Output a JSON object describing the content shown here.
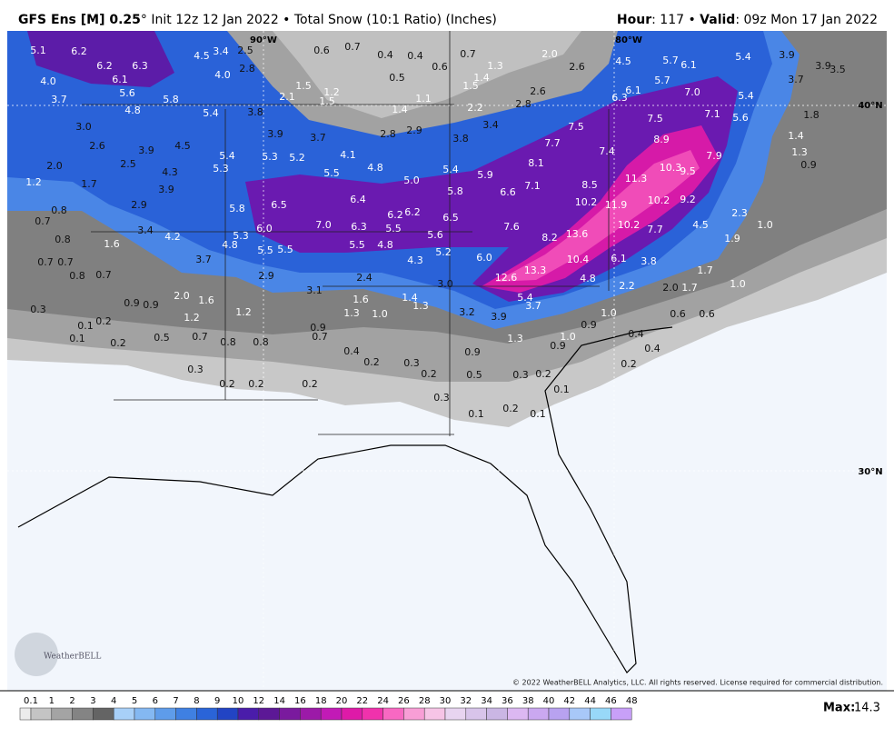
{
  "header": {
    "title_bold": "GFS Ens [M] 0.25",
    "title_rest": "° Init 12z 12 Jan 2022 • Total Snow (10:1 Ratio) (Inches)",
    "hour_key": "Hour",
    "hour_rest": ": 117 • ",
    "valid_key": "Valid",
    "valid_rest": ": 09z Mon 17 Jan 2022"
  },
  "map": {
    "grid_labels": [
      "90°W",
      "80°W",
      "40°N",
      "30°N"
    ],
    "labels": [
      "6.2",
      "5.1",
      "6.2",
      "6.3",
      "6.1",
      "4.0",
      "5.6",
      "5.8",
      "3.7",
      "4.8",
      "4.5",
      "3.4",
      "2.5",
      "2.8",
      "4.0",
      "0.6",
      "0.7",
      "0.4",
      "0.4",
      "0.5",
      "0.6",
      "0.7",
      "1.3",
      "1.4",
      "1.5",
      "2.0",
      "2.6",
      "4.5",
      "5.7",
      "6.1",
      "5.4",
      "3.9",
      "3.9",
      "3.5",
      "3.7",
      "1.5",
      "1.2",
      "1.5",
      "2.1",
      "1.4",
      "1.1",
      "2.2",
      "2.8",
      "2.6",
      "5.7",
      "7.0",
      "6.1",
      "6.3",
      "5.4",
      "5.4",
      "3.8",
      "3.0",
      "3.9",
      "3.7",
      "2.8",
      "2.9",
      "3.4",
      "3.8",
      "7.5",
      "7.5",
      "7.1",
      "5.6",
      "1.8",
      "2.6",
      "3.9",
      "4.5",
      "7.7",
      "8.9",
      "7.4",
      "7.9",
      "5.4",
      "5.3",
      "5.2",
      "4.1",
      "4.8",
      "5.4",
      "8.1",
      "10.3",
      "9.5",
      "2.5",
      "4.3",
      "5.3",
      "5.5",
      "5.0",
      "5.9",
      "2.0",
      "1.2",
      "1.7",
      "3.9",
      "8.5",
      "11.3",
      "7.1",
      "6.6",
      "5.8",
      "1.3",
      "0.9",
      "1.4",
      "6.4",
      "10.2",
      "11.9",
      "10.2",
      "9.2",
      "0.8",
      "2.9",
      "5.8",
      "6.5",
      "6.2",
      "6.2",
      "6.5",
      "0.7",
      "3.4",
      "6.0",
      "7.0",
      "6.3",
      "5.5",
      "7.6",
      "10.2",
      "7.7",
      "4.5",
      "2.3",
      "1.0",
      "0.8",
      "1.6",
      "4.2",
      "5.3",
      "5.6",
      "8.2",
      "13.6",
      "1.9",
      "4.8",
      "5.5",
      "4.8",
      "5.5",
      "5.5",
      "5.2",
      "6.0",
      "10.4",
      "6.1",
      "3.8",
      "0.7",
      "0.7",
      "3.7",
      "4.3",
      "13.3",
      "1.7",
      "0.8",
      "0.7",
      "2.9",
      "2.4",
      "12.6",
      "4.8",
      "3.0",
      "2.2",
      "2.0",
      "1.7",
      "1.0",
      "3.1",
      "2.0",
      "1.6",
      "1.6",
      "1.4",
      "1.3",
      "5.4",
      "3.7",
      "0.3",
      "0.9",
      "0.9",
      "1.2",
      "1.3",
      "1.0",
      "3.2",
      "3.9",
      "1.0",
      "0.6",
      "0.6",
      "1.2",
      "0.1",
      "0.2",
      "0.9",
      "0.9",
      "0.1",
      "0.2",
      "0.5",
      "0.7",
      "0.8",
      "0.8",
      "0.7",
      "1.3",
      "1.0",
      "0.4",
      "0.9",
      "0.4",
      "0.4",
      "0.9",
      "0.2",
      "0.3",
      "0.2",
      "0.3",
      "0.2",
      "0.5",
      "0.3",
      "0.2",
      "0.2",
      "0.2",
      "0.2",
      "0.1",
      "0.3",
      "0.2",
      "0.1",
      "0.1"
    ],
    "copyright": "© 2022 WeatherBELL Analytics, LLC. All rights reserved. License required for commercial distribution.",
    "logo": "WeatherBELL"
  },
  "colorbar": {
    "ticks": [
      "0.1",
      "1",
      "2",
      "3",
      "4",
      "5",
      "6",
      "7",
      "8",
      "9",
      "10",
      "12",
      "14",
      "16",
      "18",
      "20",
      "22",
      "24",
      "26",
      "28",
      "30",
      "32",
      "34",
      "36",
      "38",
      "40",
      "42",
      "44",
      "46",
      "48"
    ],
    "colors": [
      "#ececec",
      "#c4c4c4",
      "#a4a4a4",
      "#848484",
      "#646464",
      "#a8d0f8",
      "#84b8f2",
      "#5e9cea",
      "#3f80e2",
      "#2a64d8",
      "#2244c4",
      "#4a1caa",
      "#5c1896",
      "#7a1a9e",
      "#9c1aa8",
      "#c21ab6",
      "#de1aa8",
      "#f032ac",
      "#f868c2",
      "#f89ed6",
      "#f6c4e6",
      "#e8d4f0",
      "#d8c4ea",
      "#cab6e4",
      "#dcb8f2",
      "#caa8f0",
      "#b8a2f0",
      "#a8c8f8",
      "#98d8f8",
      "#c8a0f8"
    ],
    "max_key": "Max:",
    "max_value": "14.3"
  }
}
